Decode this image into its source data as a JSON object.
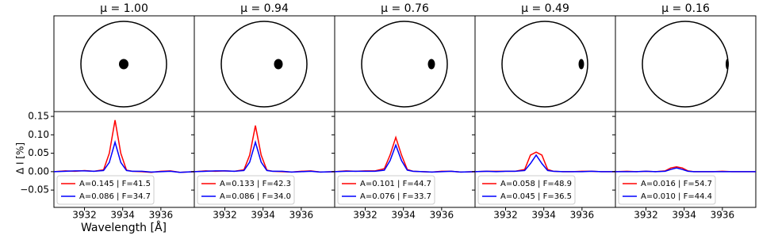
{
  "chart_data": [
    {
      "type": "line",
      "title": "μ = 1.00",
      "ylabel": "Δ I [%]",
      "xlabel": "Wavelength [Å]",
      "x": [
        3930.4,
        3931,
        3931.5,
        3932,
        3932.5,
        3933,
        3933.3,
        3933.6,
        3933.9,
        3934.2,
        3934.5,
        3935,
        3935.5,
        3936,
        3936.5,
        3937,
        3937.75
      ],
      "series": [
        {
          "name": "A=0.145 | F=41.5",
          "color": "#ff0000",
          "values": [
            0,
            0.002,
            0.001,
            0.003,
            0.001,
            0.005,
            0.05,
            0.14,
            0.05,
            0.004,
            0.001,
            0,
            -0.002,
            0.001,
            0.002,
            -0.002,
            0
          ]
        },
        {
          "name": "A=0.086 | F=34.7",
          "color": "#0000ff",
          "values": [
            0,
            0.001,
            0.002,
            0.002,
            0.001,
            0.003,
            0.025,
            0.08,
            0.025,
            0.003,
            0.001,
            0.001,
            -0.001,
            0,
            0.001,
            -0.002,
            0
          ]
        }
      ],
      "xlim": [
        3930.4,
        3937.75
      ],
      "ylim": [
        -0.097,
        0.163
      ],
      "xticks": [
        3932,
        3934,
        3936
      ],
      "yticks": [
        {
          "value": -0.05,
          "label": "−0.05"
        },
        {
          "value": 0,
          "label": "0.00"
        },
        0.05,
        {
          "value": 0.1,
          "label": "0.10"
        },
        0.15
      ],
      "legend": "lower left"
    },
    {
      "type": "line",
      "title": "μ = 0.94",
      "x": [
        3930.4,
        3931,
        3931.5,
        3932,
        3932.5,
        3933,
        3933.3,
        3933.6,
        3933.9,
        3934.2,
        3934.5,
        3935,
        3935.5,
        3936,
        3936.5,
        3937,
        3937.75
      ],
      "series": [
        {
          "name": "A=0.133 | F=42.3",
          "color": "#ff0000",
          "values": [
            0,
            0.002,
            0.001,
            0.002,
            0.001,
            0.005,
            0.045,
            0.125,
            0.045,
            0.004,
            0.001,
            0,
            -0.001,
            0.001,
            0.002,
            -0.001,
            0
          ]
        },
        {
          "name": "A=0.086 | F=34.0",
          "color": "#0000ff",
          "values": [
            0,
            0.001,
            0.002,
            0.002,
            0.001,
            0.003,
            0.026,
            0.08,
            0.026,
            0.003,
            0.001,
            0.001,
            -0.001,
            0,
            0.001,
            -0.001,
            0
          ]
        }
      ],
      "xlim": [
        3930.4,
        3937.75
      ],
      "ylim": [
        -0.097,
        0.163
      ],
      "xticks": [
        3932,
        3934,
        3936
      ],
      "yticks": [
        -0.05,
        0,
        0.05,
        0.1,
        0.15
      ],
      "legend": "lower left"
    },
    {
      "type": "line",
      "title": "μ = 0.76",
      "x": [
        3930.4,
        3931,
        3931.5,
        3932,
        3932.5,
        3933,
        3933.3,
        3933.6,
        3933.9,
        3934.2,
        3934.5,
        3935,
        3935.5,
        3936,
        3936.5,
        3937,
        3937.75
      ],
      "series": [
        {
          "name": "A=0.101 | F=44.7",
          "color": "#ff0000",
          "values": [
            0,
            0.002,
            0.001,
            0.002,
            0.002,
            0.008,
            0.045,
            0.093,
            0.045,
            0.006,
            0.001,
            0,
            -0.001,
            0.001,
            0.001,
            -0.001,
            0
          ]
        },
        {
          "name": "A=0.076 | F=33.7",
          "color": "#0000ff",
          "values": [
            0,
            0.001,
            0.001,
            0.001,
            0.001,
            0.004,
            0.03,
            0.072,
            0.03,
            0.004,
            0.001,
            0,
            -0.001,
            0,
            0.001,
            -0.001,
            0
          ]
        }
      ],
      "xlim": [
        3930.4,
        3937.75
      ],
      "ylim": [
        -0.097,
        0.163
      ],
      "xticks": [
        3932,
        3934,
        3936
      ],
      "yticks": [
        -0.05,
        0,
        0.05,
        0.1,
        0.15
      ],
      "legend": "lower left"
    },
    {
      "type": "line",
      "title": "μ = 0.49",
      "x": [
        3930.4,
        3931,
        3931.5,
        3932,
        3932.5,
        3933,
        3933.3,
        3933.6,
        3933.9,
        3934.2,
        3934.5,
        3935,
        3935.5,
        3936,
        3936.5,
        3937,
        3937.75
      ],
      "series": [
        {
          "name": "A=0.058 | F=48.9",
          "color": "#ff0000",
          "values": [
            0,
            0.001,
            0.001,
            0.001,
            0.001,
            0.006,
            0.045,
            0.053,
            0.045,
            0.006,
            0.001,
            0,
            0,
            0.001,
            0.001,
            0,
            0
          ]
        },
        {
          "name": "A=0.045 | F=36.5",
          "color": "#0000ff",
          "values": [
            0,
            0.001,
            0,
            0.001,
            0.001,
            0.003,
            0.022,
            0.045,
            0.022,
            0.003,
            0.001,
            0,
            0,
            0,
            0.001,
            0,
            0
          ]
        }
      ],
      "xlim": [
        3930.4,
        3937.75
      ],
      "ylim": [
        -0.097,
        0.163
      ],
      "xticks": [
        3932,
        3934,
        3936
      ],
      "yticks": [
        -0.05,
        0,
        0.05,
        0.1,
        0.15
      ],
      "legend": "lower left"
    },
    {
      "type": "line",
      "title": "μ = 0.16",
      "x": [
        3930.4,
        3931,
        3931.5,
        3932,
        3932.5,
        3933,
        3933.3,
        3933.6,
        3933.9,
        3934.2,
        3934.5,
        3935,
        3935.5,
        3936,
        3936.5,
        3937,
        3937.75
      ],
      "series": [
        {
          "name": "A=0.016 | F=54.7",
          "color": "#ff0000",
          "values": [
            0,
            0.001,
            0,
            0.001,
            0,
            0.002,
            0.01,
            0.013,
            0.01,
            0.002,
            0,
            0,
            0,
            0.001,
            0,
            0,
            0
          ]
        },
        {
          "name": "A=0.010 | F=44.4",
          "color": "#0000ff",
          "values": [
            0,
            0,
            0,
            0.001,
            0,
            0.001,
            0.006,
            0.01,
            0.006,
            0.001,
            0,
            0,
            0,
            0,
            0,
            0,
            0
          ]
        }
      ],
      "xlim": [
        3930.4,
        3937.75
      ],
      "ylim": [
        -0.097,
        0.163
      ],
      "xticks": [
        3932,
        3934,
        3936
      ],
      "yticks": [
        -0.05,
        0,
        0.05,
        0.1,
        0.15
      ],
      "legend": "lower left"
    }
  ]
}
